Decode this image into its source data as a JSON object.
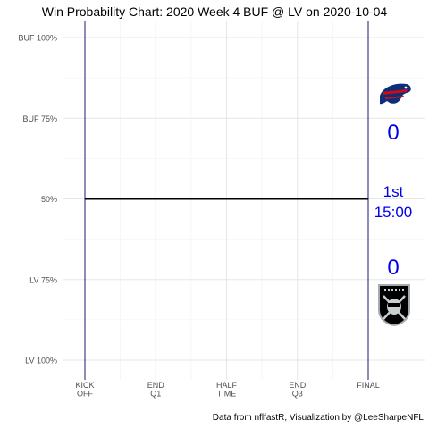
{
  "title": "Win Probability Chart: 2020 Week 4 BUF @ LV on 2020-10-04",
  "caption": "Data from nflfastR, Visualization by @LeeSharpeNFL",
  "home_logo_icon": "raiders-logo-icon",
  "away_logo_icon": "bills-logo-icon",
  "away_score": "0",
  "home_score": "0",
  "quarter": "1st",
  "clock": "15:00",
  "colors": {
    "line": "#000000",
    "boundary": "#1a1a6e",
    "grid": "#e6e6e6",
    "overlay_text": "#0000ee"
  },
  "chart_data": {
    "type": "line",
    "title": "Win Probability Chart: 2020 Week 4 BUF @ LV on 2020-10-04",
    "xlabel": "",
    "ylabel": "",
    "x_ticks": [
      "KICK\nOFF",
      "END\nQ1",
      "HALF\nTIME",
      "END\nQ3",
      "FINAL"
    ],
    "x_tick_values": [
      0,
      15,
      30,
      45,
      60
    ],
    "xlim": [
      0,
      60
    ],
    "y_ticks": [
      "BUF 100%",
      "BUF 75%",
      "50%",
      "LV 75%",
      "LV 100%"
    ],
    "y_tick_values": [
      1.0,
      0.75,
      0.5,
      0.25,
      0.0
    ],
    "ylim": [
      0,
      1
    ],
    "grid": true,
    "series": [
      {
        "x": [
          0,
          60
        ],
        "values": [
          0.5,
          0.5
        ]
      }
    ]
  }
}
